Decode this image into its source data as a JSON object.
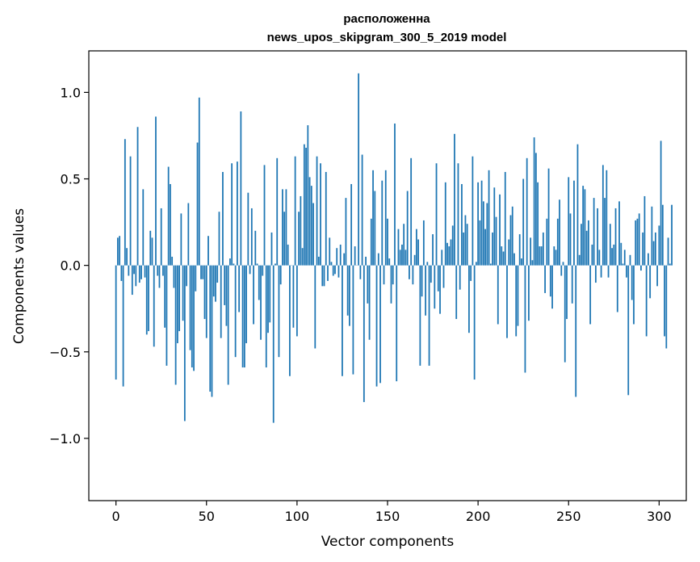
{
  "chart_data": {
    "type": "bar",
    "title_lines": [
      "расположенна",
      "news_upos_skipgram_300_5_2019 model"
    ],
    "xlabel": "Vector components",
    "ylabel": "Components values",
    "xlim": [
      -15,
      315
    ],
    "ylim": [
      -1.36,
      1.24
    ],
    "x_ticks": [
      0,
      50,
      100,
      150,
      200,
      250,
      300
    ],
    "x_tick_labels": [
      "0",
      "50",
      "100",
      "150",
      "200",
      "250",
      "300"
    ],
    "y_ticks": [
      -1.0,
      -0.5,
      0.0,
      0.5,
      1.0
    ],
    "y_tick_labels": [
      "−1.0",
      "−0.5",
      "0.0",
      "0.5",
      "1.0"
    ],
    "bar_color": "#1f77b4",
    "grid": false,
    "values": [
      -0.66,
      0.16,
      0.17,
      -0.09,
      -0.7,
      0.73,
      0.1,
      -0.06,
      0.63,
      -0.17,
      -0.05,
      -0.12,
      0.8,
      -0.1,
      -0.08,
      0.44,
      -0.07,
      -0.4,
      -0.38,
      0.2,
      0.16,
      -0.47,
      0.86,
      -0.06,
      -0.13,
      0.33,
      -0.06,
      -0.36,
      -0.58,
      0.57,
      0.47,
      0.05,
      -0.13,
      -0.69,
      -0.45,
      -0.38,
      0.3,
      -0.32,
      -0.9,
      -0.12,
      0.36,
      -0.49,
      -0.59,
      -0.61,
      -0.15,
      0.71,
      0.97,
      -0.08,
      -0.08,
      -0.31,
      -0.42,
      0.17,
      -0.73,
      -0.76,
      -0.18,
      -0.21,
      -0.1,
      0.31,
      -0.42,
      0.54,
      -0.23,
      -0.35,
      -0.69,
      0.04,
      0.59,
      0.01,
      -0.53,
      0.6,
      -0.27,
      0.89,
      -0.59,
      -0.59,
      -0.45,
      0.42,
      -0.05,
      0.33,
      -0.34,
      0.2,
      0.01,
      -0.2,
      -0.43,
      -0.06,
      0.58,
      -0.59,
      -0.39,
      -0.33,
      0.19,
      -0.91,
      0.01,
      0.62,
      -0.53,
      -0.11,
      0.44,
      0.31,
      0.44,
      0.12,
      -0.64,
      0.0,
      -0.36,
      0.63,
      -0.41,
      0.31,
      0.4,
      0.1,
      0.7,
      0.68,
      0.81,
      0.51,
      0.46,
      0.36,
      -0.48,
      0.63,
      0.05,
      0.59,
      -0.12,
      -0.12,
      0.54,
      -0.09,
      0.16,
      0.02,
      -0.06,
      -0.05,
      0.1,
      -0.07,
      0.12,
      -0.64,
      0.07,
      0.39,
      -0.29,
      -0.35,
      0.47,
      -0.63,
      0.11,
      0.0,
      1.11,
      -0.08,
      0.64,
      -0.79,
      0.05,
      -0.22,
      -0.43,
      0.27,
      0.55,
      0.43,
      -0.7,
      0.07,
      -0.68,
      0.49,
      -0.11,
      0.55,
      0.27,
      0.04,
      -0.22,
      -0.11,
      0.82,
      -0.67,
      0.21,
      0.09,
      0.12,
      0.24,
      0.09,
      0.43,
      -0.08,
      0.62,
      -0.11,
      0.06,
      0.21,
      0.15,
      -0.58,
      -0.18,
      0.26,
      -0.29,
      0.02,
      -0.58,
      -0.1,
      0.18,
      -0.25,
      0.59,
      -0.15,
      -0.28,
      0.09,
      -0.13,
      0.48,
      0.13,
      0.11,
      0.15,
      0.23,
      0.76,
      -0.31,
      0.59,
      -0.14,
      0.47,
      0.19,
      0.29,
      0.24,
      -0.39,
      -0.09,
      0.63,
      -0.66,
      0.02,
      0.48,
      0.26,
      0.49,
      0.37,
      0.21,
      0.36,
      0.55,
      0.01,
      0.19,
      0.45,
      0.28,
      -0.34,
      0.41,
      0.11,
      0.08,
      0.54,
      -0.42,
      0.15,
      0.29,
      0.34,
      0.07,
      -0.41,
      -0.35,
      0.18,
      0.04,
      0.5,
      -0.62,
      0.62,
      -0.32,
      0.16,
      0.03,
      0.74,
      0.65,
      0.48,
      0.11,
      0.11,
      0.19,
      -0.16,
      0.27,
      0.56,
      -0.18,
      -0.25,
      0.11,
      0.09,
      0.27,
      0.38,
      -0.06,
      0.02,
      -0.56,
      -0.31,
      0.51,
      0.3,
      -0.22,
      0.49,
      -0.76,
      0.7,
      0.06,
      0.24,
      0.46,
      0.44,
      0.2,
      0.26,
      -0.34,
      0.12,
      0.39,
      -0.1,
      0.33,
      0.09,
      -0.07,
      0.58,
      0.39,
      0.55,
      -0.07,
      0.24,
      0.1,
      0.12,
      0.33,
      -0.27,
      0.37,
      0.13,
      0.01,
      0.09,
      -0.07,
      -0.75,
      0.06,
      -0.2,
      -0.34,
      0.26,
      0.27,
      0.3,
      -0.03,
      0.19,
      0.4,
      -0.41,
      0.07,
      -0.19,
      0.34,
      0.14,
      0.19,
      -0.12,
      0.23,
      0.72,
      0.35,
      -0.41,
      -0.48,
      0.16,
      0.01,
      0.35
    ]
  }
}
